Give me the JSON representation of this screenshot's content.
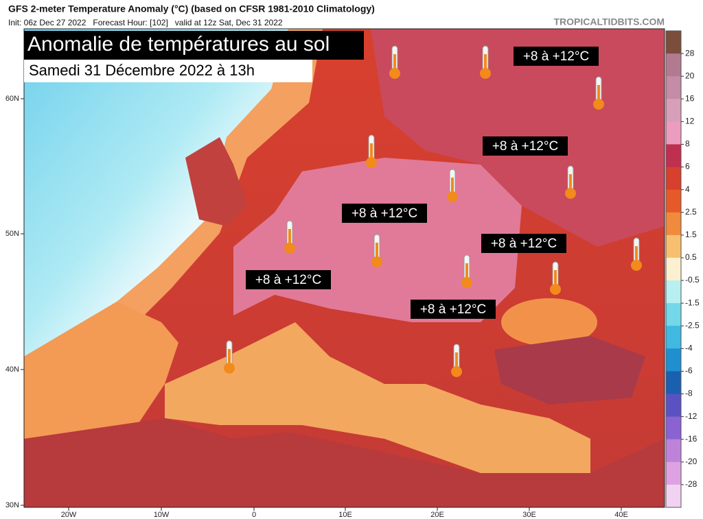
{
  "header": {
    "title": "GFS 2-meter Temperature Anomaly (°C) (based on CFSR 1981-2010 Climatology)",
    "subtitle": "Init: 06z Dec 27 2022   Forecast Hour: [102]   valid at 12z Sat, Dec 31 2022",
    "source": "TROPICALTIDBITS.COM"
  },
  "overlay": {
    "headline": "Anomalie de températures au sol",
    "date": "Samedi 31 Décembre 2022 à 13h"
  },
  "labels": [
    "+8 à +12°C",
    "+8 à +12°C",
    "+8 à +12°C",
    "+8 à +12°C",
    "+8 à +12°C",
    "+8 à +12°C"
  ],
  "axes": {
    "lat": [
      "60N",
      "50N",
      "40N",
      "30N"
    ],
    "lon": [
      "20W",
      "10W",
      "0",
      "10E",
      "20E",
      "30E",
      "40E"
    ]
  },
  "colorbar": {
    "labels": [
      28,
      20,
      16,
      12,
      8,
      6,
      4,
      2.5,
      1.5,
      0.5,
      -0.5,
      -1.5,
      -2.5,
      -4,
      -6,
      -8,
      -12,
      -16,
      -20,
      -28
    ],
    "colors": [
      "#7a4e3a",
      "#b27a90",
      "#c48ca6",
      "#d7a0b8",
      "#ec9cbf",
      "#bf2f4f",
      "#d6402c",
      "#e65a2a",
      "#f08a3c",
      "#f7c070",
      "#fdf0d0",
      "#b8f0f2",
      "#72d8ea",
      "#3fb8e2",
      "#1f8fd0",
      "#1b5fb0",
      "#5a52c2",
      "#8a62d2",
      "#bf82da",
      "#dea2e2",
      "#f2d2f2"
    ]
  }
}
